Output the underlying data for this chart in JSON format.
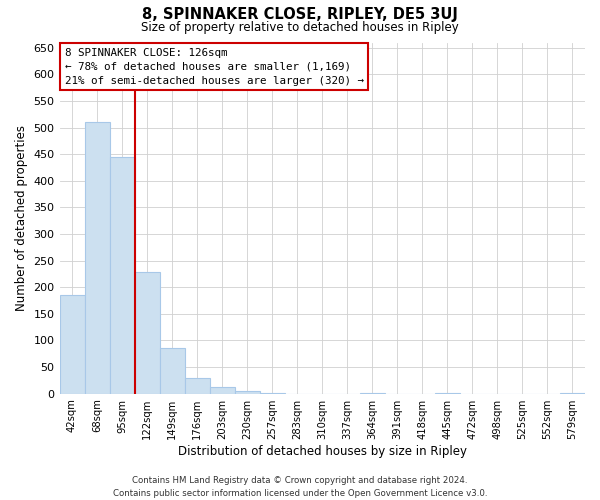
{
  "title": "8, SPINNAKER CLOSE, RIPLEY, DE5 3UJ",
  "subtitle": "Size of property relative to detached houses in Ripley",
  "xlabel": "Distribution of detached houses by size in Ripley",
  "ylabel": "Number of detached properties",
  "footer_line1": "Contains HM Land Registry data © Crown copyright and database right 2024.",
  "footer_line2": "Contains public sector information licensed under the Open Government Licence v3.0.",
  "categories": [
    "42sqm",
    "68sqm",
    "95sqm",
    "122sqm",
    "149sqm",
    "176sqm",
    "203sqm",
    "230sqm",
    "257sqm",
    "283sqm",
    "310sqm",
    "337sqm",
    "364sqm",
    "391sqm",
    "418sqm",
    "445sqm",
    "472sqm",
    "498sqm",
    "525sqm",
    "552sqm",
    "579sqm"
  ],
  "values": [
    185,
    510,
    445,
    228,
    85,
    30,
    13,
    5,
    1,
    0,
    0,
    0,
    2,
    0,
    0,
    1,
    0,
    0,
    0,
    0,
    1
  ],
  "bar_color": "#cce0f0",
  "bar_edge_color": "#a8c8e8",
  "reference_line_color": "#cc0000",
  "reference_line_index": 3,
  "annotation_title": "8 SPINNAKER CLOSE: 126sqm",
  "annotation_line1": "← 78% of detached houses are smaller (1,169)",
  "annotation_line2": "21% of semi-detached houses are larger (320) →",
  "annotation_box_color": "#ffffff",
  "annotation_box_edge_color": "#cc0000",
  "ylim": [
    0,
    660
  ],
  "yticks": [
    0,
    50,
    100,
    150,
    200,
    250,
    300,
    350,
    400,
    450,
    500,
    550,
    600,
    650
  ],
  "background_color": "#ffffff",
  "grid_color": "#d0d0d0"
}
